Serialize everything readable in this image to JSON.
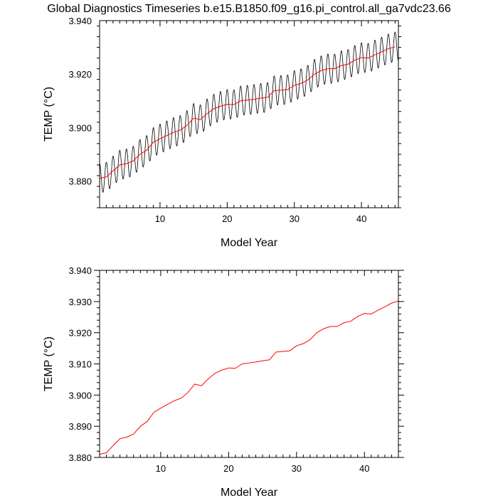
{
  "figure": {
    "title": "Global Diagnostics Timeseries b.e15.B1850.f09_g16.pi_control.all_ga7vdc23.66"
  },
  "colors": {
    "monthly_series": "#000000",
    "annual_series": "#ff0000",
    "axes": "#000000",
    "background": "#ffffff"
  },
  "chart_data": [
    {
      "type": "line",
      "title": "",
      "xlabel": "Model Year",
      "ylabel": "TEMP (°C)",
      "xlim": [
        1,
        45.5
      ],
      "ylim": [
        3.87,
        3.94
      ],
      "x_ticks": [
        10,
        20,
        30,
        40
      ],
      "x_tick_labels": [
        "10",
        "20",
        "30",
        "40"
      ],
      "y_ticks": [
        3.88,
        3.9,
        3.92,
        3.94
      ],
      "y_tick_labels": [
        "3.880",
        "3.900",
        "3.920",
        "3.940"
      ],
      "grid": false,
      "legend": "none",
      "series": [
        {
          "style": "monthly",
          "color": "#000000",
          "seasonal_amplitude": 0.0055,
          "x": [
            1,
            2,
            3,
            4,
            5,
            6,
            7,
            8,
            9,
            10,
            11,
            12,
            13,
            14,
            15,
            16,
            17,
            18,
            19,
            20,
            21,
            22,
            23,
            24,
            25,
            26,
            27,
            28,
            29,
            30,
            31,
            32,
            33,
            34,
            35,
            36,
            37,
            38,
            39,
            40,
            41,
            42,
            43,
            44,
            45
          ],
          "values": [
            3.881,
            3.8815,
            3.8838,
            3.886,
            3.8865,
            3.8875,
            3.89,
            3.8915,
            3.8945,
            3.8958,
            3.897,
            3.8982,
            3.899,
            3.9008,
            3.9035,
            3.903,
            3.9052,
            3.907,
            3.908,
            3.9087,
            3.9086,
            3.91,
            3.9103,
            3.9106,
            3.911,
            3.9113,
            3.9138,
            3.914,
            3.9142,
            3.9158,
            3.9165,
            3.9178,
            3.92,
            3.9213,
            3.922,
            3.922,
            3.9232,
            3.9237,
            3.9252,
            3.9262,
            3.926,
            3.9272,
            3.9283,
            3.9295,
            3.9302
          ]
        },
        {
          "style": "annual",
          "color": "#ff0000",
          "x": [
            1,
            2,
            3,
            4,
            5,
            6,
            7,
            8,
            9,
            10,
            11,
            12,
            13,
            14,
            15,
            16,
            17,
            18,
            19,
            20,
            21,
            22,
            23,
            24,
            25,
            26,
            27,
            28,
            29,
            30,
            31,
            32,
            33,
            34,
            35,
            36,
            37,
            38,
            39,
            40,
            41,
            42,
            43,
            44,
            45
          ],
          "values": [
            3.881,
            3.8815,
            3.8838,
            3.886,
            3.8865,
            3.8875,
            3.89,
            3.8915,
            3.8945,
            3.8958,
            3.897,
            3.8982,
            3.899,
            3.9008,
            3.9035,
            3.903,
            3.9052,
            3.907,
            3.908,
            3.9087,
            3.9086,
            3.91,
            3.9103,
            3.9106,
            3.911,
            3.9113,
            3.9138,
            3.914,
            3.9142,
            3.9158,
            3.9165,
            3.9178,
            3.92,
            3.9213,
            3.922,
            3.922,
            3.9232,
            3.9237,
            3.9252,
            3.9262,
            3.926,
            3.9272,
            3.9283,
            3.9295,
            3.9302
          ]
        }
      ]
    },
    {
      "type": "line",
      "title": "",
      "xlabel": "Model Year",
      "ylabel": "TEMP (°C)",
      "xlim": [
        1,
        45
      ],
      "ylim": [
        3.88,
        3.94
      ],
      "x_ticks": [
        10,
        20,
        30,
        40
      ],
      "x_tick_labels": [
        "10",
        "20",
        "30",
        "40"
      ],
      "y_ticks": [
        3.88,
        3.89,
        3.9,
        3.91,
        3.92,
        3.93,
        3.94
      ],
      "y_tick_labels": [
        "3.880",
        "3.890",
        "3.900",
        "3.910",
        "3.920",
        "3.930",
        "3.940"
      ],
      "grid": false,
      "legend": "none",
      "series": [
        {
          "style": "annual",
          "color": "#ff0000",
          "x": [
            1,
            2,
            3,
            4,
            5,
            6,
            7,
            8,
            9,
            10,
            11,
            12,
            13,
            14,
            15,
            16,
            17,
            18,
            19,
            20,
            21,
            22,
            23,
            24,
            25,
            26,
            27,
            28,
            29,
            30,
            31,
            32,
            33,
            34,
            35,
            36,
            37,
            38,
            39,
            40,
            41,
            42,
            43,
            44,
            45
          ],
          "values": [
            3.881,
            3.8815,
            3.8838,
            3.886,
            3.8865,
            3.8875,
            3.89,
            3.8915,
            3.8945,
            3.8958,
            3.897,
            3.8982,
            3.899,
            3.9008,
            3.9035,
            3.903,
            3.9052,
            3.907,
            3.908,
            3.9087,
            3.9086,
            3.91,
            3.9103,
            3.9106,
            3.911,
            3.9113,
            3.9138,
            3.914,
            3.9142,
            3.9158,
            3.9165,
            3.9178,
            3.92,
            3.9213,
            3.922,
            3.922,
            3.9232,
            3.9237,
            3.9252,
            3.9262,
            3.926,
            3.9272,
            3.9283,
            3.9295,
            3.9302
          ]
        }
      ]
    }
  ]
}
